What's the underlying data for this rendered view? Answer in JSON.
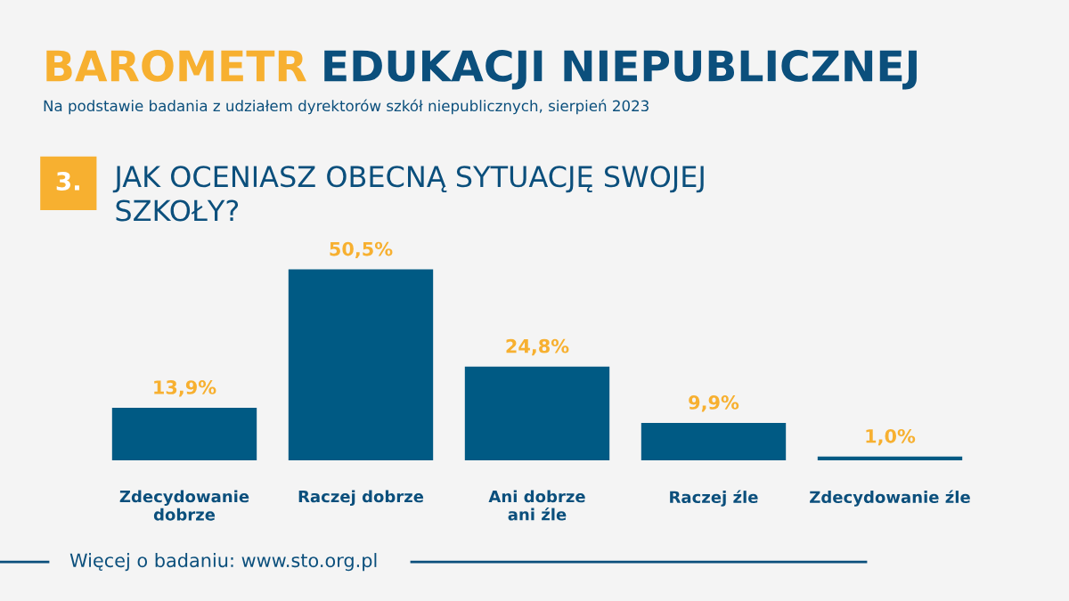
{
  "chart_data": {
    "type": "bar",
    "title": "BAROMETR EDUKACJI NIEPUBLICZNEJ",
    "subtitle": "Na podstawie badania z udziałem dyrektorów szkół niepublicznych, sierpień 2023",
    "categories": [
      "Zdecydowanie\ndobrze",
      "Raczej dobrze",
      "Ani dobrze\nani źle",
      "Raczej źle",
      "Zdecydowanie źle"
    ],
    "values": [
      13.9,
      50.5,
      24.8,
      9.9,
      1.0
    ],
    "value_labels": [
      "13,9%",
      "50,5%",
      "24,8%",
      "9,9%",
      "1,0%"
    ],
    "color": "#005a84",
    "annotations": [
      "3.",
      "JAK OCENIASZ OBECNĄ SYTUACJĘ SWOJEJ\nSZKOŁY?",
      "Więcej o badaniu: www.sto.org.pl"
    ],
    "grid": false,
    "legend": false
  }
}
